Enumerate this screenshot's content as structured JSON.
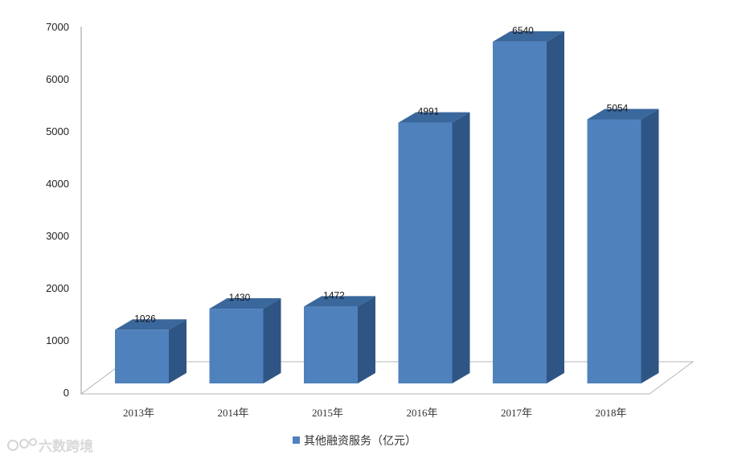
{
  "chart_data": {
    "type": "bar",
    "categories": [
      "2013年",
      "2014年",
      "2015年",
      "2016年",
      "2017年",
      "2018年"
    ],
    "series": [
      {
        "name": "其他融资服务（亿元）",
        "values": [
          1026,
          1430,
          1472,
          4991,
          6540,
          5054
        ],
        "color": "#4f81bd"
      }
    ],
    "data_labels": [
      "1026",
      "1430",
      "1472",
      "4991",
      "6540",
      "5054"
    ],
    "yticks": [
      "0",
      "1000",
      "2000",
      "3000",
      "4000",
      "5000",
      "6000",
      "7000"
    ],
    "ylim": [
      0,
      7000
    ],
    "legend_position": "bottom",
    "style": "3d-column",
    "grid": false
  },
  "watermark": {
    "text": "六数跨境"
  }
}
